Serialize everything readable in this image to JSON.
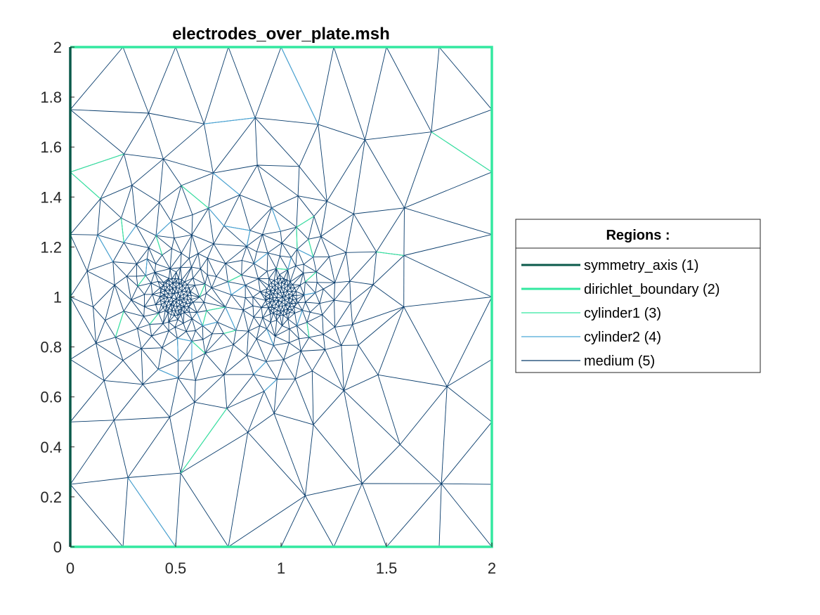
{
  "chart_data": {
    "type": "mesh",
    "title": "electrodes_over_plate.msh",
    "xlabel": "",
    "ylabel": "",
    "xlim": [
      0,
      2
    ],
    "ylim": [
      0,
      2
    ],
    "xticks": [
      0,
      0.5,
      1,
      1.5,
      2
    ],
    "xtick_labels": [
      "0",
      "0.5",
      "1",
      "1.5",
      "2"
    ],
    "yticks": [
      0,
      0.2,
      0.4,
      0.6,
      0.8,
      1,
      1.2,
      1.4,
      1.6,
      1.8,
      2
    ],
    "ytick_labels": [
      "0",
      "0.2",
      "0.4",
      "0.6",
      "0.8",
      "1",
      "1.2",
      "1.4",
      "1.6",
      "1.8",
      "2"
    ],
    "grid": false,
    "legend": {
      "title": "Regions :",
      "placement": "right",
      "entries": [
        {
          "label": "symmetry_axis (1)",
          "color": "#0a5a4a",
          "thick": true
        },
        {
          "label": "dirichlet_boundary (2)",
          "color": "#33e8a0",
          "thick": true
        },
        {
          "label": "cylinder1 (3)",
          "color": "#33e8a0",
          "thick": false
        },
        {
          "label": "cylinder2 (4)",
          "color": "#4aa6d6",
          "thick": false
        },
        {
          "label": "medium (5)",
          "color": "#073b6b",
          "thick": false
        }
      ]
    },
    "refinement_centers": [
      [
        0.5,
        1.0
      ],
      [
        1.0,
        1.0
      ]
    ],
    "colors": {
      "symmetry_axis": "#0a5a4a",
      "dirichlet_boundary": "#33e8a0",
      "cylinder1": "#33e8a0",
      "cylinder2": "#4aa6d6",
      "medium": "#073b6b"
    }
  }
}
